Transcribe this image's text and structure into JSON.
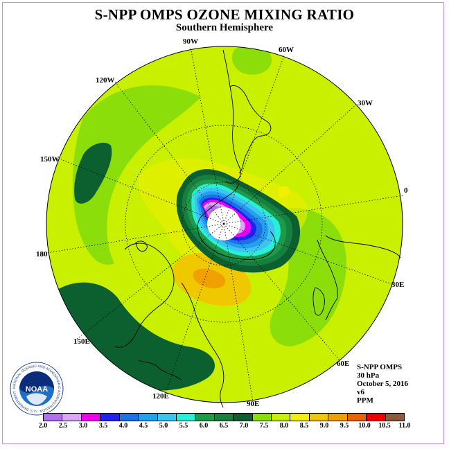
{
  "title": "S-NPP OMPS OZONE MIXING RATIO",
  "subtitle": "Southern Hemisphere",
  "map_labels": {
    "90w": "90W",
    "60w": "60W",
    "30w": "30W",
    "120w": "120W",
    "150w": "150W",
    "0": "0",
    "180": "180",
    "30e": "30E",
    "150e": "150E",
    "60e": "60E",
    "120e": "120E",
    "90e": "90E"
  },
  "info": {
    "instrument": "S-NPP OMPS",
    "level": "30 hPa",
    "date": "October 5, 2016",
    "version": "v6",
    "units": "PPM"
  },
  "logo": {
    "text": "NOAA",
    "ring_text": "NATIONAL OCEANIC AND ATMOSPHERIC ADMINISTRATION · U.S. DEPARTMENT OF COMMERCE"
  },
  "legend": {
    "ticks": [
      "2.0",
      "2.5",
      "3.0",
      "3.5",
      "4.0",
      "4.5",
      "5.0",
      "5.5",
      "6.0",
      "6.5",
      "7.0",
      "7.5",
      "8.0",
      "8.5",
      "9.0",
      "9.5",
      "10.0",
      "10.5",
      "11.0"
    ],
    "colors": [
      "#b070f0",
      "#d9a7f5",
      "#f000f0",
      "#2020f0",
      "#1e70e8",
      "#24a0f0",
      "#3ec4f0",
      "#28f0d8",
      "#1f9a4a",
      "#158040",
      "#0c6030",
      "#8cde0a",
      "#c8f000",
      "#f0f000",
      "#f0c800",
      "#f0a000",
      "#f06000",
      "#f00000",
      "#8c5a3c"
    ]
  }
}
